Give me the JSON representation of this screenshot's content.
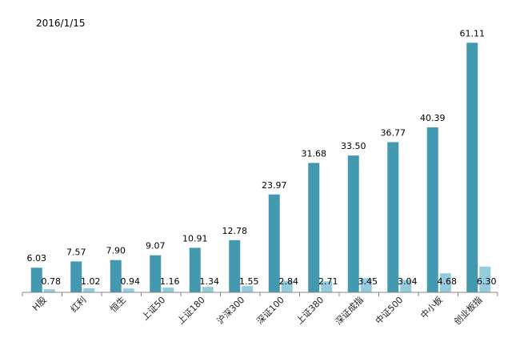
{
  "chart_data": {
    "type": "bar",
    "title": "2016/1/15",
    "categories": [
      "H股",
      "红利",
      "恒生",
      "上证50",
      "上证180",
      "沪深300",
      "深证100",
      "上证380",
      "深证成指",
      "中证500",
      "中小板",
      "创业板指"
    ],
    "series": [
      {
        "values": [
          6.03,
          7.57,
          7.9,
          9.07,
          10.91,
          12.78,
          23.97,
          31.68,
          33.5,
          36.77,
          40.39,
          61.11
        ],
        "labels": [
          "6.03",
          "7.57",
          "7.90",
          "9.07",
          "10.91",
          "12.78",
          "23.97",
          "31.68",
          "33.50",
          "36.77",
          "40.39",
          "61.11"
        ],
        "color": "#4299b0"
      },
      {
        "values": [
          0.78,
          1.02,
          0.94,
          1.16,
          1.34,
          1.55,
          2.84,
          2.71,
          3.45,
          3.04,
          4.68,
          6.3
        ],
        "labels": [
          "0.78",
          "1.02",
          "0.94",
          "1.16",
          "1.34",
          "1.55",
          "2.84",
          "2.71",
          "3.45",
          "3.04",
          "4.68",
          "6.30"
        ],
        "color": "#93cddd"
      }
    ],
    "ylim": [
      0,
      64
    ],
    "grid": false,
    "legend": "none",
    "axis_color": "#868686"
  }
}
